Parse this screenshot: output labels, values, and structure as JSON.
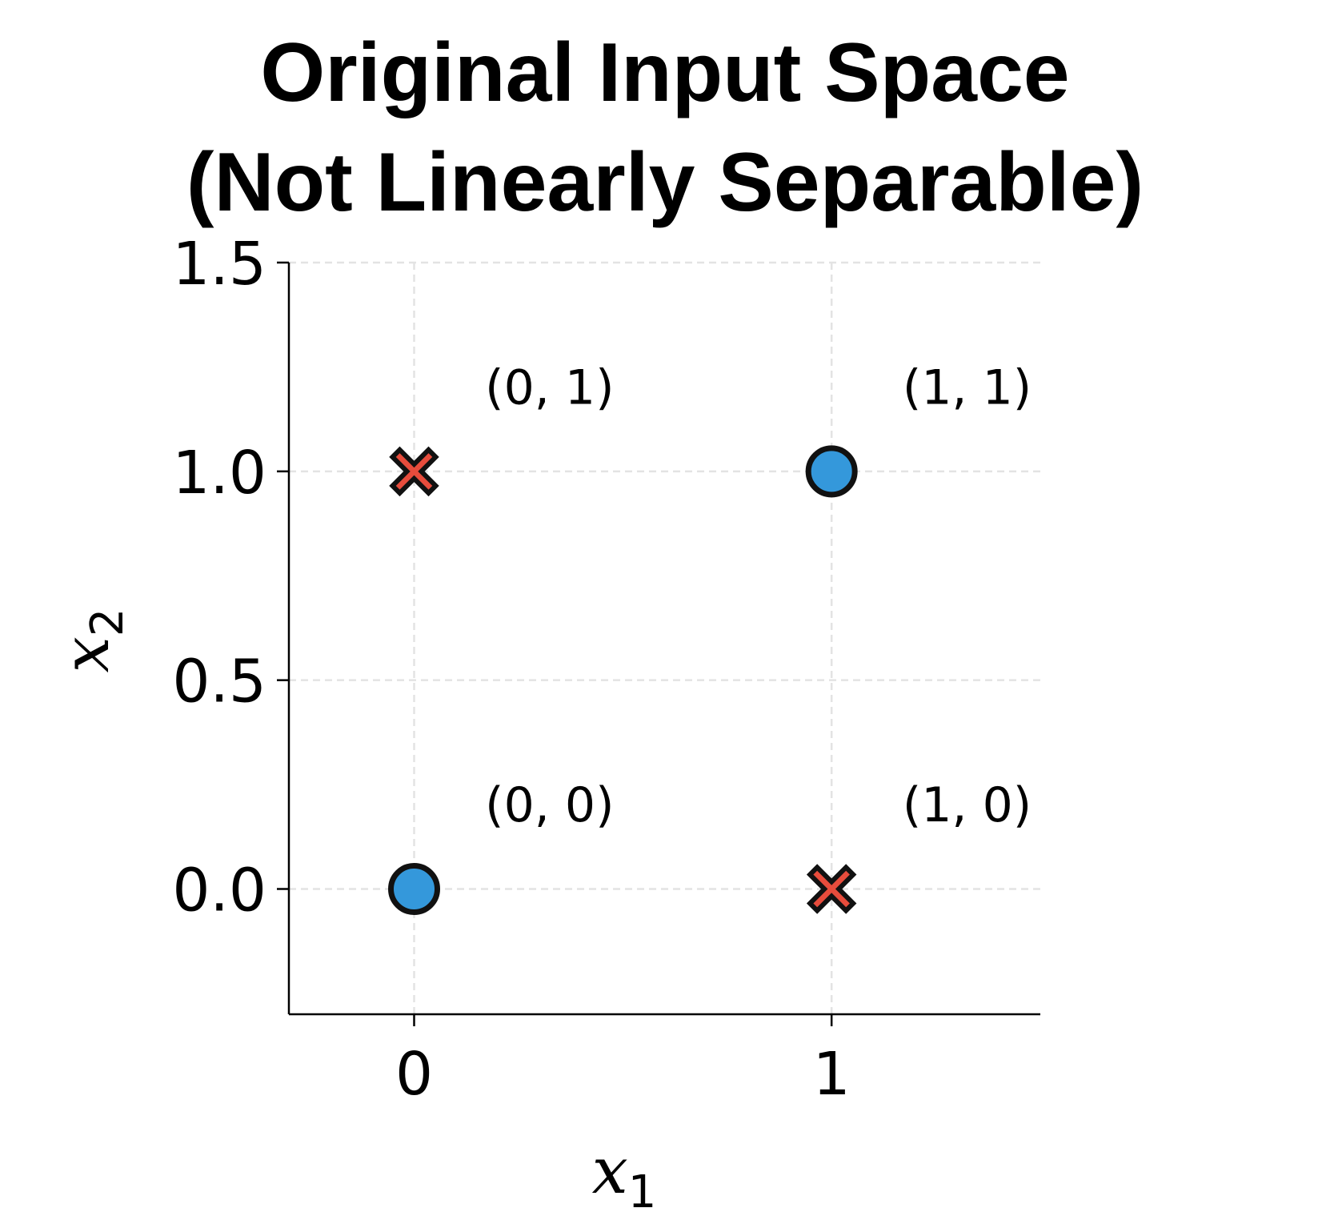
{
  "chart_data": {
    "type": "scatter",
    "title_lines": [
      "Original Input Space",
      "(Not Linearly Separable)"
    ],
    "xlabel": "x",
    "xlabel_sub": "1",
    "ylabel": "x",
    "ylabel_sub": "2",
    "xlim": [
      -0.3,
      1.5
    ],
    "ylim": [
      -0.3,
      1.5
    ],
    "xticks": [
      0,
      1
    ],
    "xtick_labels": [
      "0",
      "1"
    ],
    "yticks": [
      0.0,
      0.5,
      1.0,
      1.5
    ],
    "ytick_labels": [
      "0.0",
      "0.5",
      "1.0",
      "1.5"
    ],
    "grid": true,
    "points": [
      {
        "x": 0,
        "y": 0,
        "marker": "circle",
        "color": "#3498db",
        "label": "(0, 0)"
      },
      {
        "x": 0,
        "y": 1,
        "marker": "x",
        "color": "#e74c3c",
        "label": "(0, 1)"
      },
      {
        "x": 1,
        "y": 0,
        "marker": "x",
        "color": "#e74c3c",
        "label": "(1, 0)"
      },
      {
        "x": 1,
        "y": 1,
        "marker": "circle",
        "color": "#3498db",
        "label": "(1, 1)"
      }
    ]
  }
}
